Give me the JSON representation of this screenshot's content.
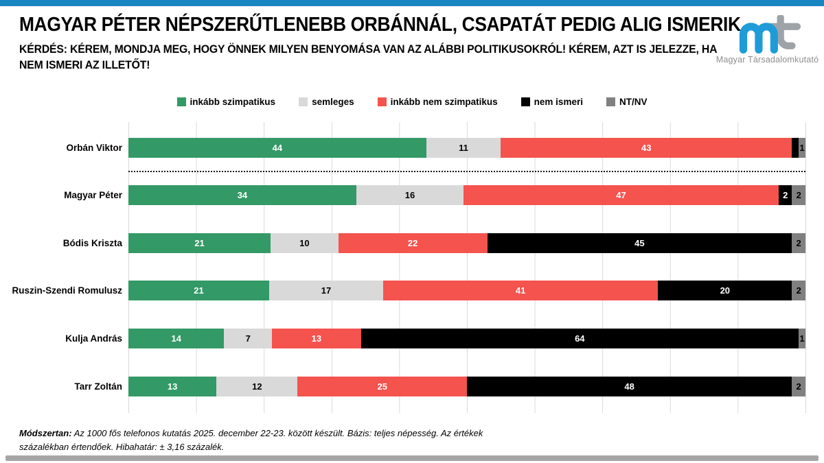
{
  "header": {
    "title": "MAGYAR PÉTER NÉPSZERŰTLENEBB ORBÁNNÁL, CSAPATÁT PEDIG ALIG ISMERIK",
    "subtitle_line1": "KÉRDÉS: KÉREM, MONDJA MEG, HOGY ÖNNEK MILYEN BENYOMÁSA VAN AZ ALÁBBI POLITIKUSOKRÓL! KÉREM, AZT IS JELEZZE, HA",
    "subtitle_line2": "NEM ISMERI AZ ILLETŐT!"
  },
  "logo": {
    "monogram": "mt",
    "caption": "Magyar Társadalomkutató",
    "blue": "#1f9cd8",
    "gray": "#9ea3a8"
  },
  "accent_colors": {
    "top_bar": "#1986c2",
    "bottom_bar": "#a6a6a6",
    "gridline": "#d9d9d9"
  },
  "chart_data": {
    "type": "bar",
    "orientation": "horizontal",
    "stacked": true,
    "unit": "percent",
    "xlim": [
      0,
      100
    ],
    "grid": true,
    "gridline_step": 10,
    "legend_position": "top",
    "series_names": [
      "inkább szimpatikus",
      "semleges",
      "inkább nem szimpatikus",
      "nem ismeri",
      "NT/NV"
    ],
    "series_colors": [
      "#339966",
      "#d9d9d9",
      "#f4534e",
      "#000000",
      "#808080"
    ],
    "label_text_colors": [
      "#ffffff",
      "#000000",
      "#ffffff",
      "#ffffff",
      "#000000"
    ],
    "categories": [
      "Orbán Viktor",
      "Magyar Péter",
      "Bódis Kriszta",
      "Ruszin-Szendi Romulusz",
      "Kulja András",
      "Tarr Zoltán"
    ],
    "rows": [
      {
        "name": "Orbán Viktor",
        "values": [
          44,
          11,
          43,
          1,
          1
        ],
        "labels": [
          "44",
          "11",
          "43",
          "",
          "1"
        ]
      },
      {
        "name": "Magyar Péter",
        "values": [
          34,
          16,
          47,
          2,
          2
        ],
        "labels": [
          "34",
          "16",
          "47",
          "2",
          "2"
        ]
      },
      {
        "name": "Bódis Kriszta",
        "values": [
          21,
          10,
          22,
          45,
          2
        ],
        "labels": [
          "21",
          "10",
          "22",
          "45",
          "2"
        ]
      },
      {
        "name": "Ruszin-Szendi Romulusz",
        "values": [
          21,
          17,
          41,
          20,
          2
        ],
        "labels": [
          "21",
          "17",
          "41",
          "20",
          "2"
        ]
      },
      {
        "name": "Kulja András",
        "values": [
          14,
          7,
          13,
          64,
          1
        ],
        "labels": [
          "14",
          "7",
          "13",
          "64",
          "1"
        ]
      },
      {
        "name": "Tarr Zoltán",
        "values": [
          13,
          12,
          25,
          48,
          2
        ],
        "labels": [
          "13",
          "12",
          "25",
          "48",
          "2"
        ]
      }
    ],
    "separator_after_row": 0,
    "title": "MAGYAR PÉTER NÉPSZERŰTLENEBB ORBÁNNÁL, CSAPATÁT PEDIG ALIG ISMERIK"
  },
  "footer": {
    "label": "Módszertan:",
    "line1": " Az 1000 fős telefonos kutatás 2025. december 22-23. között készült. Bázis: teljes népesség. Az értékek",
    "line2": "százalékban értendőek. Hibahatár: ± 3,16 százalék."
  }
}
